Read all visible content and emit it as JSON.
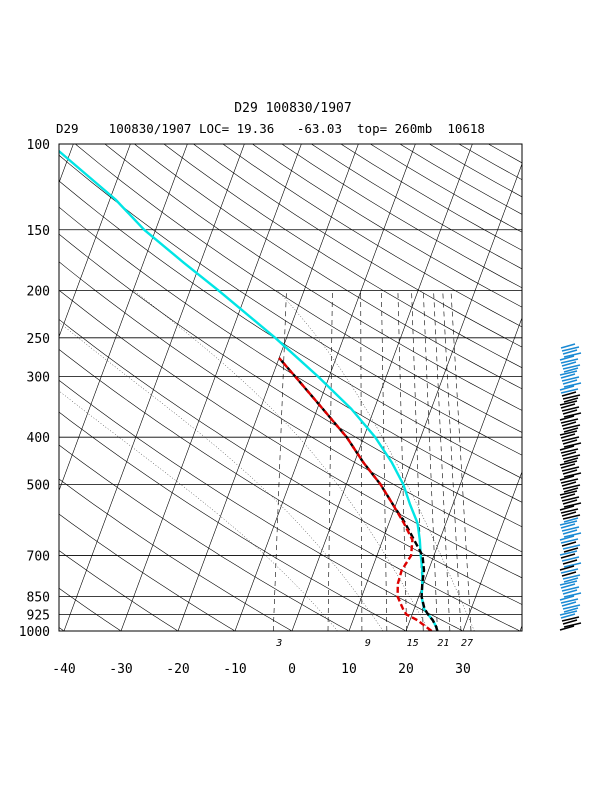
{
  "header": {
    "title": "D29 100830/1907",
    "subtitle": "D29    100830/1907 LOC= 19.36   -63.03  top= 260mb  10618"
  },
  "chart_data": {
    "type": "line",
    "title": "D29 100830/1907",
    "y_scale": "log-pressure",
    "yticks": [
      {
        "p": 100,
        "label": "100"
      },
      {
        "p": 150,
        "label": "150"
      },
      {
        "p": 200,
        "label": "200"
      },
      {
        "p": 250,
        "label": "250"
      },
      {
        "p": 300,
        "label": "300"
      },
      {
        "p": 400,
        "label": "400"
      },
      {
        "p": 500,
        "label": "500"
      },
      {
        "p": 700,
        "label": "700"
      },
      {
        "p": 850,
        "label": "850"
      },
      {
        "p": 925,
        "label": "925"
      },
      {
        "p": 1000,
        "label": "1000"
      }
    ],
    "xticks": [
      -40,
      -30,
      -20,
      -10,
      0,
      10,
      20,
      30
    ],
    "xlim": [
      -40,
      40
    ],
    "ylim": [
      1000,
      100
    ],
    "mixing_ratio_labels": [
      {
        "w": 3,
        "label": "3"
      },
      {
        "w": 9,
        "label": "9"
      },
      {
        "w": 15,
        "label": "15"
      },
      {
        "w": 21,
        "label": "21"
      },
      {
        "w": 27,
        "label": "27"
      }
    ],
    "colors": {
      "cyan": "#00e5e5",
      "black": "#000000",
      "red": "#dd0000",
      "wind_blue": "#1a8ad4",
      "wind_black": "#000000"
    },
    "series": [
      {
        "color": "cyan",
        "points": [
          [
            1000,
            25.5
          ],
          [
            980,
            25
          ],
          [
            950,
            24
          ],
          [
            925,
            22.8
          ],
          [
            900,
            21.7
          ],
          [
            850,
            20.5
          ],
          [
            800,
            19.8
          ],
          [
            750,
            18.9
          ],
          [
            700,
            17.7
          ],
          [
            650,
            16.5
          ],
          [
            600,
            15
          ],
          [
            550,
            12.5
          ],
          [
            500,
            10
          ],
          [
            450,
            6.5
          ],
          [
            400,
            2
          ],
          [
            350,
            -4
          ],
          [
            300,
            -12
          ],
          [
            250,
            -22
          ],
          [
            200,
            -35
          ],
          [
            175,
            -43
          ],
          [
            150,
            -52
          ],
          [
            130,
            -59
          ],
          [
            115,
            -66
          ],
          [
            100,
            -74
          ]
        ]
      },
      {
        "color": "black",
        "dash": true,
        "points": [
          [
            1000,
            25.5
          ],
          [
            980,
            25
          ],
          [
            950,
            24
          ],
          [
            925,
            22.8
          ],
          [
            900,
            21.8
          ],
          [
            850,
            20.5
          ],
          [
            800,
            19.8
          ],
          [
            750,
            19.2
          ],
          [
            700,
            18
          ],
          [
            650,
            15.5
          ],
          [
            600,
            12.8
          ],
          [
            550,
            9.5
          ],
          [
            500,
            6
          ],
          [
            450,
            1.5
          ],
          [
            400,
            -3
          ],
          [
            350,
            -9
          ],
          [
            300,
            -16
          ],
          [
            275,
            -20
          ]
        ]
      },
      {
        "color": "red",
        "dash": true,
        "points": [
          [
            1000,
            24.5
          ],
          [
            950,
            21.3
          ],
          [
            925,
            19
          ],
          [
            900,
            18
          ],
          [
            850,
            16.3
          ],
          [
            800,
            15.5
          ],
          [
            750,
            15.3
          ],
          [
            700,
            16
          ],
          [
            650,
            15.2
          ],
          [
            600,
            12.6
          ],
          [
            550,
            9.5
          ],
          [
            500,
            6
          ],
          [
            450,
            1.5
          ],
          [
            400,
            -3
          ],
          [
            350,
            -9
          ],
          [
            300,
            -16
          ],
          [
            275,
            -20
          ]
        ]
      }
    ]
  },
  "wind_profile": {
    "upper_color": "wind_blue",
    "lower_color": "wind_black"
  }
}
